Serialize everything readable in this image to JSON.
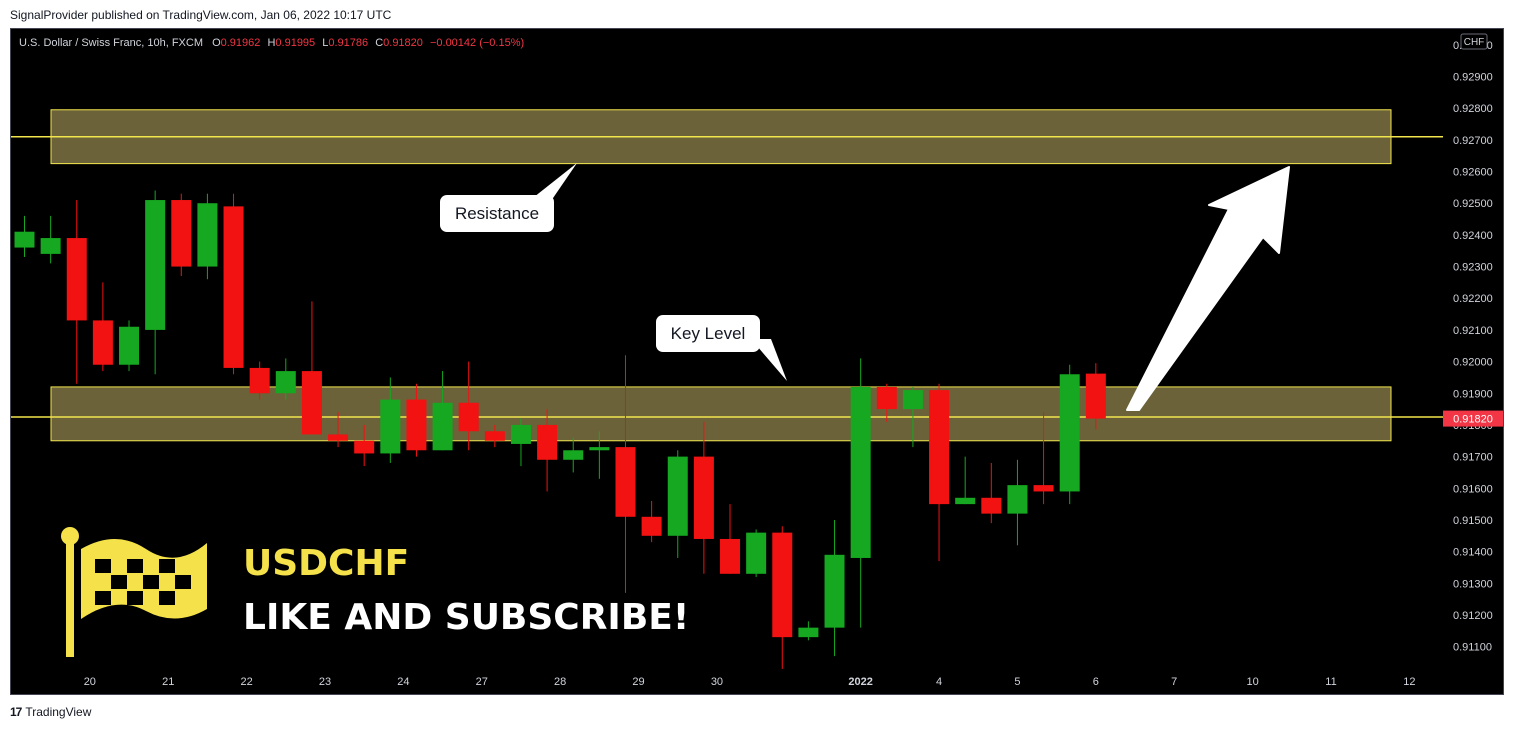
{
  "header": {
    "caption": "SignalProvider published on TradingView.com, Jan 06, 2022 10:17 UTC"
  },
  "footer": {
    "brand": "TradingView",
    "logo_icon": "tradingview-logo-icon"
  },
  "chart_data": {
    "type": "candlestick",
    "legend": {
      "symbol": "U.S. Dollar / Swiss Franc, 10h, FXCM",
      "o_label": "O",
      "o": "0.91962",
      "h_label": "H",
      "h": "0.91995",
      "l_label": "L",
      "l": "0.91786",
      "c_label": "C",
      "c": "0.91820",
      "change": "−0.00142 (−0.15%)"
    },
    "currency": "CHF",
    "last_price": "0.91820",
    "last_value": 0.9182,
    "ylim": [
      0.9102,
      0.9305
    ],
    "y_ticks": [
      "0.92900",
      "0.92800",
      "0.92700",
      "0.92600",
      "0.92500",
      "0.92400",
      "0.92300",
      "0.92200",
      "0.92100",
      "0.92000",
      "0.91900",
      "0.91800",
      "0.91700",
      "0.91600",
      "0.91500",
      "0.91400",
      "0.91300",
      "0.91200",
      "0.91100"
    ],
    "top_tick_partial": "0.93000",
    "x_ticks": [
      {
        "label": "20",
        "slot": 2.5
      },
      {
        "label": "21",
        "slot": 5.5
      },
      {
        "label": "22",
        "slot": 8.5
      },
      {
        "label": "23",
        "slot": 11.5
      },
      {
        "label": "24",
        "slot": 14.5
      },
      {
        "label": "27",
        "slot": 17.5
      },
      {
        "label": "28",
        "slot": 20.5
      },
      {
        "label": "29",
        "slot": 23.5
      },
      {
        "label": "30",
        "slot": 26.5
      },
      {
        "label": "2022",
        "slot": 32.0,
        "bold": true
      },
      {
        "label": "4",
        "slot": 35.0
      },
      {
        "label": "5",
        "slot": 38.0
      },
      {
        "label": "6",
        "slot": 41.0
      },
      {
        "label": "7",
        "slot": 44.0
      },
      {
        "label": "10",
        "slot": 47.0
      },
      {
        "label": "11",
        "slot": 50.0
      },
      {
        "label": "12",
        "slot": 53.0
      }
    ],
    "candles": [
      {
        "o": 0.9236,
        "h": 0.9246,
        "l": 0.9233,
        "c": 0.9241
      },
      {
        "o": 0.9234,
        "h": 0.9246,
        "l": 0.9231,
        "c": 0.9239
      },
      {
        "o": 0.9239,
        "h": 0.9251,
        "l": 0.9193,
        "c": 0.9213
      },
      {
        "o": 0.9213,
        "h": 0.9225,
        "l": 0.9197,
        "c": 0.9199
      },
      {
        "o": 0.9199,
        "h": 0.9213,
        "l": 0.9197,
        "c": 0.9211
      },
      {
        "o": 0.921,
        "h": 0.9254,
        "l": 0.9196,
        "c": 0.9251
      },
      {
        "o": 0.9251,
        "h": 0.9253,
        "l": 0.9227,
        "c": 0.923
      },
      {
        "o": 0.923,
        "h": 0.9253,
        "l": 0.9226,
        "c": 0.925
      },
      {
        "o": 0.9249,
        "h": 0.9253,
        "l": 0.9196,
        "c": 0.9198
      },
      {
        "o": 0.9198,
        "h": 0.92,
        "l": 0.9188,
        "c": 0.919
      },
      {
        "o": 0.919,
        "h": 0.9201,
        "l": 0.9188,
        "c": 0.9197
      },
      {
        "o": 0.9197,
        "h": 0.9219,
        "l": 0.9177,
        "c": 0.9177
      },
      {
        "o": 0.9177,
        "h": 0.9184,
        "l": 0.9173,
        "c": 0.9175
      },
      {
        "o": 0.9175,
        "h": 0.918,
        "l": 0.9167,
        "c": 0.9171
      },
      {
        "o": 0.9171,
        "h": 0.9195,
        "l": 0.9168,
        "c": 0.9188
      },
      {
        "o": 0.9188,
        "h": 0.9193,
        "l": 0.917,
        "c": 0.9172
      },
      {
        "o": 0.9172,
        "h": 0.9197,
        "l": 0.9172,
        "c": 0.9187
      },
      {
        "o": 0.9187,
        "h": 0.92,
        "l": 0.9172,
        "c": 0.9178
      },
      {
        "o": 0.9178,
        "h": 0.918,
        "l": 0.9173,
        "c": 0.9175
      },
      {
        "o": 0.9174,
        "h": 0.9182,
        "l": 0.9167,
        "c": 0.918
      },
      {
        "o": 0.918,
        "h": 0.9185,
        "l": 0.9159,
        "c": 0.9169
      },
      {
        "o": 0.9169,
        "h": 0.9176,
        "l": 0.9165,
        "c": 0.9172
      },
      {
        "o": 0.9172,
        "h": 0.9178,
        "l": 0.9163,
        "c": 0.9173
      },
      {
        "o": 0.9173,
        "h": 0.9202,
        "l": 0.9127,
        "c": 0.9151
      },
      {
        "o": 0.9151,
        "h": 0.9156,
        "l": 0.9143,
        "c": 0.9145
      },
      {
        "o": 0.9145,
        "h": 0.9172,
        "l": 0.9138,
        "c": 0.917
      },
      {
        "o": 0.917,
        "h": 0.9181,
        "l": 0.9133,
        "c": 0.9144
      },
      {
        "o": 0.9144,
        "h": 0.9155,
        "l": 0.9133,
        "c": 0.9133
      },
      {
        "o": 0.9133,
        "h": 0.9147,
        "l": 0.9132,
        "c": 0.9146
      },
      {
        "o": 0.9146,
        "h": 0.9148,
        "l": 0.9103,
        "c": 0.9113
      },
      {
        "o": 0.9113,
        "h": 0.9118,
        "l": 0.9112,
        "c": 0.9116
      },
      {
        "o": 0.9116,
        "h": 0.915,
        "l": 0.9107,
        "c": 0.9139
      },
      {
        "o": 0.9138,
        "h": 0.9201,
        "l": 0.9116,
        "c": 0.9192
      },
      {
        "o": 0.9192,
        "h": 0.9193,
        "l": 0.9181,
        "c": 0.9185
      },
      {
        "o": 0.9185,
        "h": 0.9192,
        "l": 0.9173,
        "c": 0.9191
      },
      {
        "o": 0.9191,
        "h": 0.9193,
        "l": 0.9137,
        "c": 0.9155
      },
      {
        "o": 0.9155,
        "h": 0.917,
        "l": 0.9155,
        "c": 0.9157
      },
      {
        "o": 0.9157,
        "h": 0.9168,
        "l": 0.9149,
        "c": 0.9152
      },
      {
        "o": 0.9152,
        "h": 0.9169,
        "l": 0.9142,
        "c": 0.9161
      },
      {
        "o": 0.9161,
        "h": 0.9184,
        "l": 0.9155,
        "c": 0.9159
      },
      {
        "o": 0.9159,
        "h": 0.9199,
        "l": 0.9155,
        "c": 0.9196
      },
      {
        "o": 0.91962,
        "h": 0.91995,
        "l": 0.91786,
        "c": 0.9182
      }
    ],
    "zones": [
      {
        "name": "resistance-zone",
        "top": 0.92795,
        "bottom": 0.92625,
        "line": 0.9271
      },
      {
        "name": "key-level-zone",
        "top": 0.9192,
        "bottom": 0.9175,
        "line": 0.91825
      }
    ],
    "annotations": [
      {
        "name": "resistance-callout",
        "text": "Resistance"
      },
      {
        "name": "key-level-callout",
        "text": "Key Level"
      }
    ],
    "colors": {
      "up": "#15a820",
      "down": "#f21212",
      "zone_line": "#f2e64d",
      "zone_fill": "#6b6239",
      "price_tag": "#f23645",
      "axis_text": "#d1d4dc"
    }
  },
  "overlay": {
    "pair": "USDCHF",
    "tagline": "LIKE AND SUBSCRIBE!",
    "flag_icon": "checkered-flag-icon",
    "arrow_icon": "up-arrow-icon"
  }
}
